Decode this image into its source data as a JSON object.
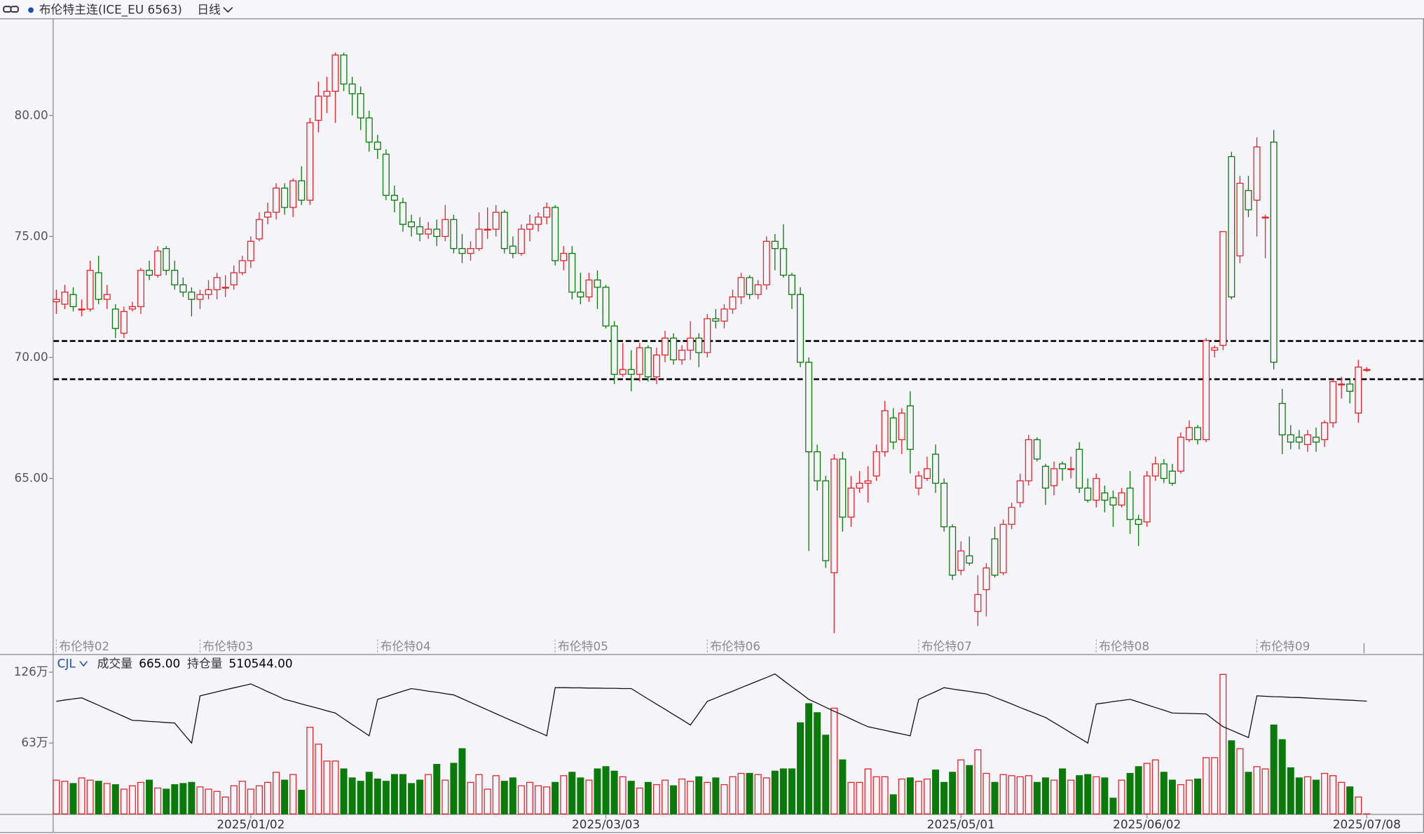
{
  "chart_data": {
    "type": "candlestick",
    "title": "布伦特主连(ICE_EU 6563)",
    "period": "日线",
    "up_color": "#e8232a",
    "down_color": "#0a7a0a",
    "line_color": "#111111",
    "ylim": [
      57.74,
      83.98
    ],
    "yticks": [
      {
        "value": 65,
        "label": "65.00"
      },
      {
        "value": 70,
        "label": "70.00"
      },
      {
        "value": 75,
        "label": "75.00"
      },
      {
        "value": 80,
        "label": "80.00"
      }
    ],
    "hlines": [
      70.68,
      69.1
    ],
    "categories": [
      null,
      null,
      null,
      null,
      null,
      null,
      null,
      null,
      null,
      null,
      null,
      null,
      null,
      null,
      null,
      null,
      null,
      null,
      null,
      null,
      null,
      null,
      null,
      "2025/01/02",
      null,
      null,
      null,
      null,
      null,
      null,
      null,
      null,
      null,
      null,
      null,
      null,
      null,
      null,
      null,
      null,
      null,
      null,
      null,
      null,
      null,
      null,
      null,
      null,
      null,
      null,
      null,
      null,
      null,
      null,
      null,
      null,
      null,
      null,
      null,
      null,
      null,
      null,
      null,
      null,
      null,
      "2025/03/03",
      null,
      null,
      null,
      null,
      null,
      null,
      null,
      null,
      null,
      null,
      null,
      null,
      null,
      null,
      null,
      null,
      null,
      null,
      null,
      null,
      null,
      null,
      null,
      null,
      null,
      null,
      null,
      null,
      null,
      null,
      null,
      null,
      null,
      null,
      null,
      null,
      null,
      null,
      null,
      null,
      null,
      "2025/05/01",
      null,
      null,
      null,
      null,
      null,
      null,
      null,
      null,
      null,
      null,
      null,
      null,
      null,
      null,
      null,
      null,
      null,
      null,
      null,
      null,
      null,
      "2025/06/02",
      null,
      null,
      null,
      null,
      null,
      null,
      null,
      null,
      null,
      null,
      null,
      null,
      null,
      null,
      null,
      null,
      null,
      null,
      null,
      null,
      null,
      null,
      null,
      null,
      null,
      "2025/07/08"
    ],
    "contract_labels": [
      "布伦特02",
      null,
      null,
      null,
      null,
      null,
      null,
      null,
      null,
      null,
      null,
      null,
      null,
      null,
      null,
      null,
      null,
      "布伦特03",
      null,
      null,
      null,
      null,
      null,
      null,
      null,
      null,
      null,
      null,
      null,
      null,
      null,
      null,
      null,
      null,
      null,
      null,
      null,
      null,
      "布伦特04",
      null,
      null,
      null,
      null,
      null,
      null,
      null,
      null,
      null,
      null,
      null,
      null,
      null,
      null,
      null,
      null,
      null,
      null,
      null,
      null,
      "布伦特05",
      null,
      null,
      null,
      null,
      null,
      null,
      null,
      null,
      null,
      null,
      null,
      null,
      null,
      null,
      null,
      null,
      null,
      "布伦特06",
      null,
      null,
      null,
      null,
      null,
      null,
      null,
      null,
      null,
      null,
      null,
      null,
      null,
      null,
      null,
      null,
      null,
      null,
      null,
      null,
      null,
      null,
      null,
      null,
      "布伦特07",
      null,
      null,
      null,
      null,
      null,
      null,
      null,
      null,
      null,
      null,
      null,
      null,
      null,
      null,
      null,
      null,
      null,
      null,
      null,
      null,
      "布伦特08",
      null,
      null,
      null,
      null,
      null,
      null,
      null,
      null,
      null,
      null,
      null,
      null,
      null,
      null,
      null,
      null,
      null,
      null,
      "布伦特09",
      null,
      null,
      null,
      null,
      null,
      null,
      null,
      null,
      null,
      null,
      null,
      null,
      null
    ],
    "open": [
      72.3,
      72.2,
      72.6,
      72.0,
      72.0,
      73.5,
      72.4,
      72.0,
      71.0,
      72.0,
      72.1,
      73.6,
      73.4,
      74.5,
      73.6,
      73.0,
      72.7,
      72.4,
      72.6,
      72.8,
      72.9,
      73.0,
      73.5,
      74.0,
      74.9,
      75.8,
      76.0,
      77.0,
      76.2,
      77.3,
      76.5,
      79.8,
      80.8,
      81.0,
      82.5,
      81.3,
      80.9,
      79.9,
      78.9,
      78.4,
      76.7,
      76.4,
      75.6,
      75.4,
      75.1,
      75.3,
      75.0,
      75.7,
      74.5,
      74.3,
      74.5,
      75.3,
      75.3,
      76.0,
      74.6,
      74.3,
      75.3,
      75.5,
      75.8,
      76.2,
      74.0,
      74.3,
      72.7,
      72.5,
      73.2,
      72.9,
      71.3,
      69.3,
      69.5,
      69.3,
      70.4,
      69.2,
      70.1,
      70.8,
      69.9,
      70.3,
      70.8,
      70.2,
      71.6,
      71.5,
      72.0,
      72.5,
      73.3,
      72.6,
      73.0,
      74.8,
      74.5,
      73.4,
      72.6,
      69.8,
      66.1,
      64.9,
      61.1,
      65.8,
      63.4,
      64.6,
      64.8,
      65.1,
      66.1,
      67.5,
      66.6,
      68.0,
      64.6,
      65.0,
      66.0,
      64.8,
      63.0,
      61.2,
      61.8,
      59.5,
      60.4,
      62.5,
      61.1,
      63.1,
      64.0,
      64.9,
      66.6,
      65.5,
      64.7,
      65.6,
      65.4,
      66.2,
      64.6,
      64.1,
      64.4,
      64.2,
      63.9,
      64.6,
      63.3,
      63.2,
      65.1,
      65.6,
      65.3,
      65.3,
      66.6,
      67.1,
      66.6,
      70.3,
      70.5,
      78.3,
      74.2,
      76.9,
      76.5,
      75.8,
      78.9,
      68.1,
      66.8,
      66.7,
      66.4,
      66.7,
      66.6,
      67.3,
      68.9,
      68.9,
      67.7,
      69.5
    ],
    "high": [
      72.8,
      73.0,
      72.9,
      72.4,
      74.0,
      74.2,
      73.0,
      72.2,
      72.1,
      72.3,
      73.7,
      74.0,
      74.6,
      74.6,
      74.0,
      73.3,
      72.9,
      72.8,
      73.2,
      73.5,
      73.4,
      73.8,
      74.2,
      75.0,
      76.0,
      76.4,
      77.2,
      77.2,
      77.4,
      77.9,
      79.9,
      81.4,
      81.6,
      82.6,
      82.6,
      81.6,
      81.2,
      80.2,
      79.2,
      78.6,
      77.1,
      76.6,
      75.9,
      75.8,
      75.6,
      75.7,
      76.3,
      75.9,
      75.1,
      74.8,
      76.0,
      76.2,
      76.3,
      76.1,
      75.0,
      75.5,
      75.9,
      76.0,
      76.4,
      76.3,
      74.6,
      74.6,
      73.5,
      73.5,
      73.6,
      73.0,
      71.5,
      70.6,
      70.3,
      70.6,
      70.5,
      70.4,
      71.1,
      71.0,
      70.5,
      71.5,
      71.0,
      71.8,
      72.0,
      72.2,
      72.8,
      73.5,
      73.4,
      73.2,
      75.0,
      75.1,
      75.5,
      73.5,
      72.9,
      70.0,
      66.4,
      65.1,
      66.0,
      66.1,
      65.1,
      65.3,
      65.5,
      66.4,
      68.2,
      67.9,
      67.9,
      68.6,
      65.3,
      65.9,
      66.4,
      65.0,
      63.1,
      62.4,
      62.6,
      61.0,
      61.5,
      63.0,
      63.3,
      64.0,
      65.2,
      66.8,
      66.7,
      65.6,
      65.7,
      65.7,
      65.9,
      66.5,
      65.0,
      65.2,
      64.7,
      64.5,
      64.6,
      65.3,
      63.5,
      65.3,
      65.9,
      65.8,
      65.6,
      66.9,
      67.4,
      67.2,
      70.8,
      70.5,
      75.2,
      78.5,
      77.5,
      77.5,
      79.1,
      75.9,
      79.4,
      68.7,
      67.2,
      67.0,
      67.0,
      67.1,
      67.4,
      69.1,
      69.2,
      69.1,
      69.9,
      69.6
    ],
    "low": [
      71.8,
      72.0,
      71.9,
      71.7,
      71.9,
      72.2,
      72.0,
      70.8,
      70.8,
      71.9,
      71.8,
      73.2,
      73.3,
      73.4,
      72.8,
      72.5,
      71.7,
      72.0,
      72.4,
      72.4,
      72.5,
      72.8,
      73.4,
      73.7,
      74.8,
      75.5,
      75.7,
      75.9,
      75.8,
      76.3,
      76.3,
      79.3,
      80.1,
      79.7,
      81.0,
      80.0,
      79.4,
      78.5,
      78.2,
      76.5,
      76.0,
      75.2,
      75.0,
      74.8,
      74.9,
      74.6,
      74.8,
      74.3,
      73.9,
      74.0,
      74.4,
      74.9,
      75.0,
      74.3,
      74.1,
      74.2,
      74.8,
      75.2,
      75.5,
      73.8,
      73.6,
      72.4,
      72.2,
      72.3,
      72.0,
      71.2,
      68.9,
      69.2,
      68.6,
      69.0,
      69.0,
      68.9,
      69.8,
      69.7,
      69.7,
      69.9,
      69.6,
      70.0,
      71.2,
      71.2,
      71.8,
      72.2,
      72.4,
      72.4,
      72.8,
      73.6,
      73.3,
      72.0,
      69.6,
      62.0,
      64.5,
      61.3,
      58.6,
      62.8,
      63.0,
      64.4,
      64.0,
      64.9,
      65.9,
      66.2,
      66.0,
      65.2,
      64.3,
      64.9,
      64.4,
      62.8,
      60.8,
      61.0,
      61.4,
      58.9,
      59.3,
      60.9,
      61.0,
      62.9,
      63.8,
      64.7,
      65.7,
      63.9,
      64.3,
      64.9,
      65.0,
      64.4,
      64.0,
      63.8,
      63.6,
      63.0,
      63.8,
      62.7,
      62.2,
      63.0,
      64.9,
      64.8,
      64.7,
      65.2,
      66.5,
      66.4,
      66.5,
      70.0,
      70.3,
      72.4,
      73.9,
      75.8,
      75.0,
      74.1,
      69.5,
      66.0,
      66.2,
      66.2,
      66.1,
      66.1,
      66.3,
      67.1,
      68.3,
      68.1,
      67.3,
      69.4
    ],
    "close": [
      72.4,
      72.7,
      72.1,
      72.0,
      73.6,
      72.4,
      72.6,
      71.2,
      71.9,
      72.1,
      73.6,
      73.4,
      74.4,
      73.6,
      73.0,
      72.7,
      72.4,
      72.6,
      72.8,
      73.3,
      72.9,
      73.5,
      74.0,
      74.8,
      75.7,
      76.0,
      77.0,
      76.2,
      77.3,
      76.5,
      79.7,
      80.8,
      81.0,
      82.5,
      81.3,
      80.9,
      79.9,
      78.9,
      78.6,
      76.7,
      76.5,
      75.5,
      75.4,
      75.1,
      75.3,
      75.0,
      75.7,
      74.5,
      74.3,
      74.5,
      75.3,
      75.3,
      76.0,
      74.5,
      74.3,
      75.3,
      75.5,
      75.8,
      76.2,
      74.0,
      74.3,
      72.7,
      72.5,
      73.2,
      72.9,
      71.3,
      69.3,
      69.5,
      69.3,
      70.4,
      69.2,
      70.1,
      70.8,
      69.9,
      70.3,
      70.8,
      70.2,
      71.6,
      71.5,
      72.0,
      72.5,
      73.3,
      72.6,
      73.0,
      74.8,
      74.5,
      73.4,
      72.6,
      69.8,
      66.1,
      64.9,
      61.6,
      65.8,
      63.4,
      64.6,
      64.8,
      64.9,
      66.1,
      67.8,
      66.5,
      67.7,
      66.2,
      65.1,
      65.4,
      64.8,
      63.0,
      61.0,
      62.0,
      61.5,
      60.2,
      61.3,
      61.0,
      63.1,
      63.8,
      64.9,
      66.6,
      65.8,
      64.6,
      65.4,
      65.4,
      65.4,
      64.6,
      64.1,
      65.0,
      64.1,
      63.9,
      64.4,
      63.3,
      63.1,
      65.1,
      65.6,
      65.0,
      64.8,
      66.7,
      67.1,
      66.6,
      70.7,
      70.4,
      75.2,
      72.5,
      77.2,
      76.1,
      78.7,
      75.8,
      69.8,
      66.8,
      66.5,
      66.5,
      66.8,
      66.5,
      67.3,
      69.0,
      68.9,
      68.6,
      69.6,
      69.5
    ],
    "indicator": "CJL",
    "volume_name": "成交量",
    "volume_text": "665.00",
    "oi_name": "持仓量",
    "oi_text": "510544.00",
    "volume": [
      30,
      29,
      27,
      32,
      30,
      29,
      27,
      26,
      22,
      25,
      28,
      30,
      23,
      22,
      26,
      27,
      28,
      24,
      22,
      20,
      15,
      25,
      29,
      22,
      25,
      28,
      37,
      30,
      35,
      21,
      77,
      62,
      47,
      47,
      40,
      32,
      29,
      37,
      31,
      29,
      35,
      35,
      27,
      30,
      35,
      44,
      30,
      45,
      58,
      28,
      35,
      22,
      34,
      29,
      32,
      25,
      28,
      25,
      24,
      28,
      34,
      37,
      32,
      30,
      40,
      42,
      38,
      33,
      29,
      23,
      28,
      26,
      30,
      25,
      31,
      29,
      33,
      28,
      32,
      26,
      33,
      36,
      36,
      35,
      32,
      38,
      40,
      40,
      81,
      98,
      90,
      70,
      94,
      48,
      28,
      28,
      40,
      33,
      33,
      17,
      31,
      32,
      29,
      31,
      39,
      28,
      37,
      48,
      43,
      57,
      36,
      28,
      35,
      34,
      33,
      34,
      28,
      32,
      30,
      40,
      30,
      34,
      35,
      33,
      32,
      14,
      30,
      36,
      42,
      45,
      48,
      37,
      30,
      26,
      30,
      31,
      50,
      50,
      124,
      65,
      58,
      37,
      42,
      40,
      79,
      66,
      41,
      32,
      33,
      30,
      36,
      34,
      28,
      24,
      15,
      0.0665
    ],
    "volume_ylim": [
      0,
      140.5
    ],
    "volume_yticks": [
      {
        "value": 126,
        "label": "126万"
      },
      {
        "value": 63,
        "label": "63万"
      }
    ],
    "oi": [
      51.0,
      51.6,
      52.1,
      52.6,
      50.9,
      49.2,
      47.5,
      45.8,
      44.1,
      42.4,
      42.2,
      41.9,
      41.7,
      41.4,
      41.2,
      36.6,
      32.1,
      53.5,
      54.4,
      55.3,
      56.2,
      57.1,
      58.0,
      58.9,
      57.2,
      55.4,
      53.7,
      51.9,
      50.9,
      49.8,
      48.8,
      47.8,
      46.7,
      45.7,
      43.1,
      40.5,
      38.0,
      35.4,
      51.9,
      53.1,
      54.4,
      55.6,
      56.8,
      56.2,
      55.6,
      55.1,
      54.5,
      53.9,
      52.2,
      50.5,
      48.8,
      47.1,
      45.4,
      43.7,
      42.0,
      40.4,
      38.7,
      37.1,
      35.4,
      57.2,
      57.2,
      57.1,
      57.1,
      57.0,
      57.0,
      56.9,
      56.9,
      56.8,
      56.8,
      54.4,
      52.0,
      49.7,
      47.4,
      45.0,
      42.7,
      40.3,
      45.6,
      51.0,
      52.5,
      54.1,
      55.6,
      57.2,
      58.7,
      60.3,
      61.8,
      63.4,
      60.5,
      57.6,
      54.8,
      51.9,
      50.1,
      48.3,
      46.5,
      44.8,
      43.0,
      41.2,
      39.5,
      38.7,
      37.9,
      37.0,
      36.2,
      35.4,
      51.9,
      53.7,
      55.4,
      57.2,
      56.6,
      56.0,
      55.5,
      54.9,
      54.3,
      52.8,
      51.3,
      49.8,
      48.2,
      46.7,
      45.2,
      43.7,
      41.4,
      39.1,
      36.7,
      34.4,
      32.1,
      49.8,
      50.3,
      50.9,
      51.4,
      51.9,
      50.7,
      49.4,
      48.2,
      47.0,
      45.7,
      45.6,
      45.5,
      45.4,
      45.3,
      42.4,
      39.5,
      37.9,
      36.2,
      34.6,
      53.5,
      53.3,
      53.1,
      53.0,
      52.8,
      52.7,
      52.5,
      52.3,
      52.1,
      51.9,
      51.7,
      51.5,
      51.3,
      51.0544
    ],
    "y2lim": [
      0,
      71.6
    ]
  }
}
